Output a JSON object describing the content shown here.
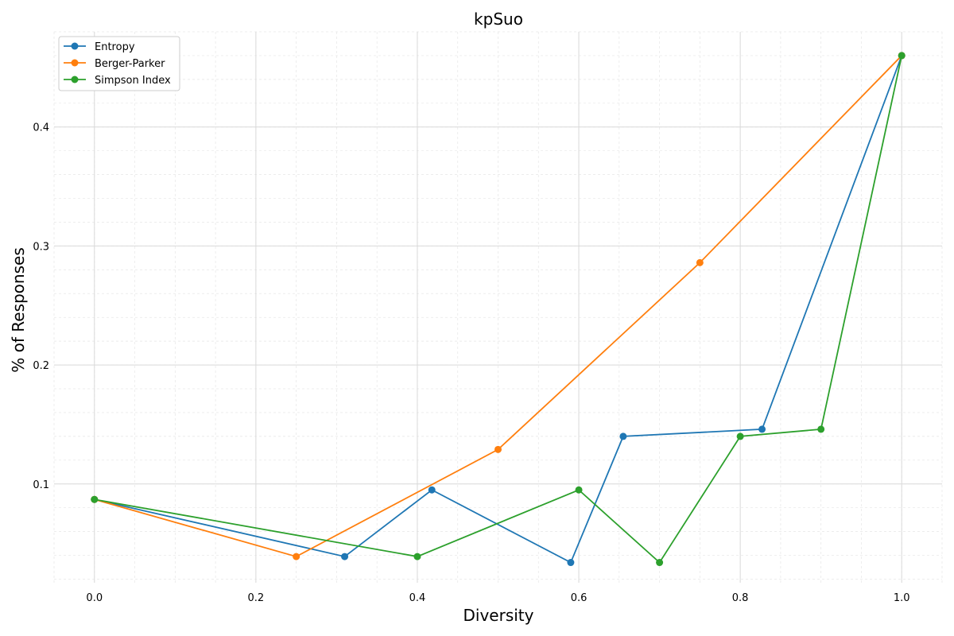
{
  "chart_data": {
    "type": "line",
    "title": "kpSuo",
    "xlabel": "Diversity",
    "ylabel": "% of Responses",
    "xlim": [
      -0.05,
      1.05
    ],
    "ylim": [
      0.017,
      0.48
    ],
    "xticks": [
      0.0,
      0.2,
      0.4,
      0.6,
      0.8,
      1.0
    ],
    "xtick_labels": [
      "0.0",
      "0.2",
      "0.4",
      "0.6",
      "0.8",
      "1.0"
    ],
    "yticks": [
      0.1,
      0.2,
      0.3,
      0.4
    ],
    "ytick_labels": [
      "0.1",
      "0.2",
      "0.3",
      "0.4"
    ],
    "grid": true,
    "legend": "top-left",
    "series": [
      {
        "name": "Entropy",
        "color": "#1f77b4",
        "x": [
          0.0,
          0.31,
          0.418,
          0.59,
          0.655,
          0.827,
          1.0
        ],
        "y": [
          0.087,
          0.039,
          0.095,
          0.034,
          0.14,
          0.146,
          0.46
        ]
      },
      {
        "name": "Berger-Parker",
        "color": "#ff7f0e",
        "x": [
          0.0,
          0.25,
          0.5,
          0.75,
          1.0
        ],
        "y": [
          0.087,
          0.039,
          0.129,
          0.286,
          0.46
        ]
      },
      {
        "name": "Simpson Index",
        "color": "#2ca02c",
        "x": [
          0.0,
          0.4,
          0.6,
          0.7,
          0.8,
          0.9,
          1.0
        ],
        "y": [
          0.087,
          0.039,
          0.095,
          0.034,
          0.14,
          0.146,
          0.46
        ]
      }
    ]
  }
}
